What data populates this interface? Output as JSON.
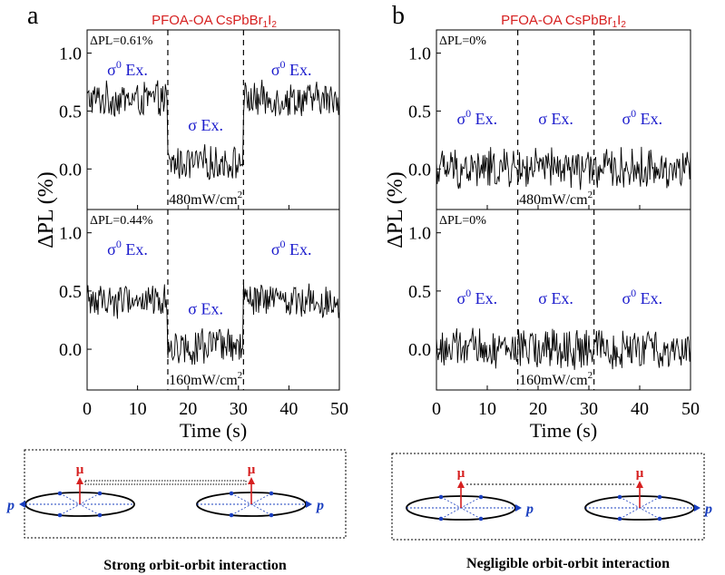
{
  "chart_data": [
    {
      "type": "line",
      "panel_letter": "a",
      "title_prefix": "PFOA-OA CsPbBr",
      "title_sub1": "1",
      "title_mid": "I",
      "title_sub2": "2",
      "ylabel": "ΔPL (%)",
      "xlabel": "Time (s)",
      "xlim": [
        0,
        50
      ],
      "x_ticks": [
        "0",
        "10",
        "20",
        "30",
        "40",
        "50"
      ],
      "switch_times": [
        16,
        31
      ],
      "subplots": [
        {
          "delta_label": "ΔPL=0.61%",
          "intensity": "480mW/cm",
          "intensity_exp": "2",
          "ylim": [
            -0.35,
            1.2
          ],
          "y_ticks": [
            "0.0",
            "0.5",
            "1.0"
          ],
          "segments": [
            {
              "label_main": "σ",
              "label_sup": "0",
              "label_rest": "Ex.",
              "x_start": 0,
              "x_end": 16,
              "level": 0.6
            },
            {
              "label_main": "σ",
              "label_sup": "",
              "label_rest": "Ex.",
              "x_start": 16,
              "x_end": 31,
              "level": 0.05
            },
            {
              "label_main": "σ",
              "label_sup": "0",
              "label_rest": "Ex.",
              "x_start": 31,
              "x_end": 50,
              "level": 0.6
            }
          ]
        },
        {
          "delta_label": "ΔPL=0.44%",
          "intensity": "160mW/cm",
          "intensity_exp": "2",
          "ylim": [
            -0.35,
            1.2
          ],
          "y_ticks": [
            "0.0",
            "0.5",
            "1.0"
          ],
          "segments": [
            {
              "label_main": "σ",
              "label_sup": "0",
              "label_rest": "Ex.",
              "x_start": 0,
              "x_end": 16,
              "level": 0.42
            },
            {
              "label_main": "σ",
              "label_sup": "",
              "label_rest": "Ex.",
              "x_start": 16,
              "x_end": 31,
              "level": 0.02
            },
            {
              "label_main": "σ",
              "label_sup": "0",
              "label_rest": "Ex.",
              "x_start": 31,
              "x_end": 50,
              "level": 0.42
            }
          ]
        }
      ]
    },
    {
      "type": "line",
      "panel_letter": "b",
      "title_prefix": "PFOA-OA CsPbBr",
      "title_sub1": "1",
      "title_mid": "I",
      "title_sub2": "2",
      "ylabel": "ΔPL (%)",
      "xlabel": "Time (s)",
      "xlim": [
        0,
        50
      ],
      "x_ticks": [
        "0",
        "10",
        "20",
        "30",
        "40",
        "50"
      ],
      "switch_times": [
        16,
        31
      ],
      "subplots": [
        {
          "delta_label": "ΔPL=0%",
          "intensity": "480mW/cm",
          "intensity_exp": "2",
          "ylim": [
            -0.35,
            1.2
          ],
          "y_ticks": [
            "0.0",
            "0.5",
            "1.0"
          ],
          "segments": [
            {
              "label_main": "σ",
              "label_sup": "0",
              "label_rest": "Ex.",
              "x_start": 0,
              "x_end": 16,
              "level": 0.0
            },
            {
              "label_main": "σ",
              "label_sup": "",
              "label_rest": "Ex.",
              "x_start": 16,
              "x_end": 31,
              "level": 0.0
            },
            {
              "label_main": "σ",
              "label_sup": "0",
              "label_rest": "Ex.",
              "x_start": 31,
              "x_end": 50,
              "level": 0.0
            }
          ]
        },
        {
          "delta_label": "ΔPL=0%",
          "intensity": "160mW/cm",
          "intensity_exp": "2",
          "ylim": [
            -0.35,
            1.2
          ],
          "y_ticks": [
            "0.0",
            "0.5",
            "1.0"
          ],
          "segments": [
            {
              "label_main": "σ",
              "label_sup": "0",
              "label_rest": "Ex.",
              "x_start": 0,
              "x_end": 16,
              "level": 0.0
            },
            {
              "label_main": "σ",
              "label_sup": "",
              "label_rest": "Ex.",
              "x_start": 16,
              "x_end": 31,
              "level": 0.0
            },
            {
              "label_main": "σ",
              "label_sup": "0",
              "label_rest": "Ex.",
              "x_start": 31,
              "x_end": 50,
              "level": 0.0
            }
          ]
        }
      ]
    }
  ],
  "schematics": [
    {
      "caption": "Strong orbit-orbit interaction",
      "mu_label": "μ",
      "p_label": "p",
      "link_style": "dotted"
    },
    {
      "caption": "Negligible orbit-orbit interaction",
      "mu_label": "μ",
      "p_label": "p",
      "link_style": "dashed"
    }
  ],
  "colors": {
    "title": "#d62020",
    "label": "#1a1acc",
    "trace": "#000000",
    "arrow_mu": "#d62020",
    "arrow_p": "#1a3fbf"
  }
}
